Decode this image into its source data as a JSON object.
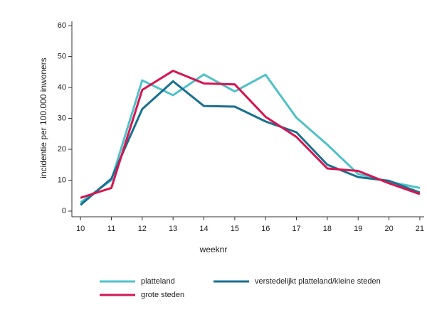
{
  "chart_data": {
    "type": "line",
    "x": [
      10,
      11,
      12,
      13,
      14,
      15,
      16,
      17,
      18,
      19,
      20,
      21
    ],
    "xlabel": "weeknr",
    "ylabel": "incidentie per 100.000 inwoners",
    "xlim": [
      9.72,
      21.14
    ],
    "xticks": [
      10,
      11,
      12,
      13,
      14,
      15,
      16,
      17,
      18,
      19,
      20,
      21
    ],
    "ylim": [
      -1.84,
      61.4
    ],
    "yticks": [
      0,
      10,
      20,
      30,
      40,
      50,
      60
    ],
    "series": [
      {
        "name": "platteland",
        "color": "#4fc1c9",
        "values": [
          2.8,
          10,
          42.3,
          37.5,
          44.2,
          38.7,
          44.1,
          30.2,
          21.5,
          12,
          9.5,
          7.5
        ]
      },
      {
        "name": "verstedelijkt platteland/kleine steden",
        "color": "#1a6f8f",
        "values": [
          2,
          10.5,
          33,
          42,
          34,
          33.8,
          29,
          25.5,
          15,
          11,
          9.8,
          6
        ]
      },
      {
        "name": "grote steden",
        "color": "#d6154f",
        "values": [
          4.3,
          7.5,
          39.2,
          45.4,
          41.3,
          41,
          30.5,
          24,
          13.8,
          13,
          9,
          5.5
        ]
      }
    ]
  }
}
